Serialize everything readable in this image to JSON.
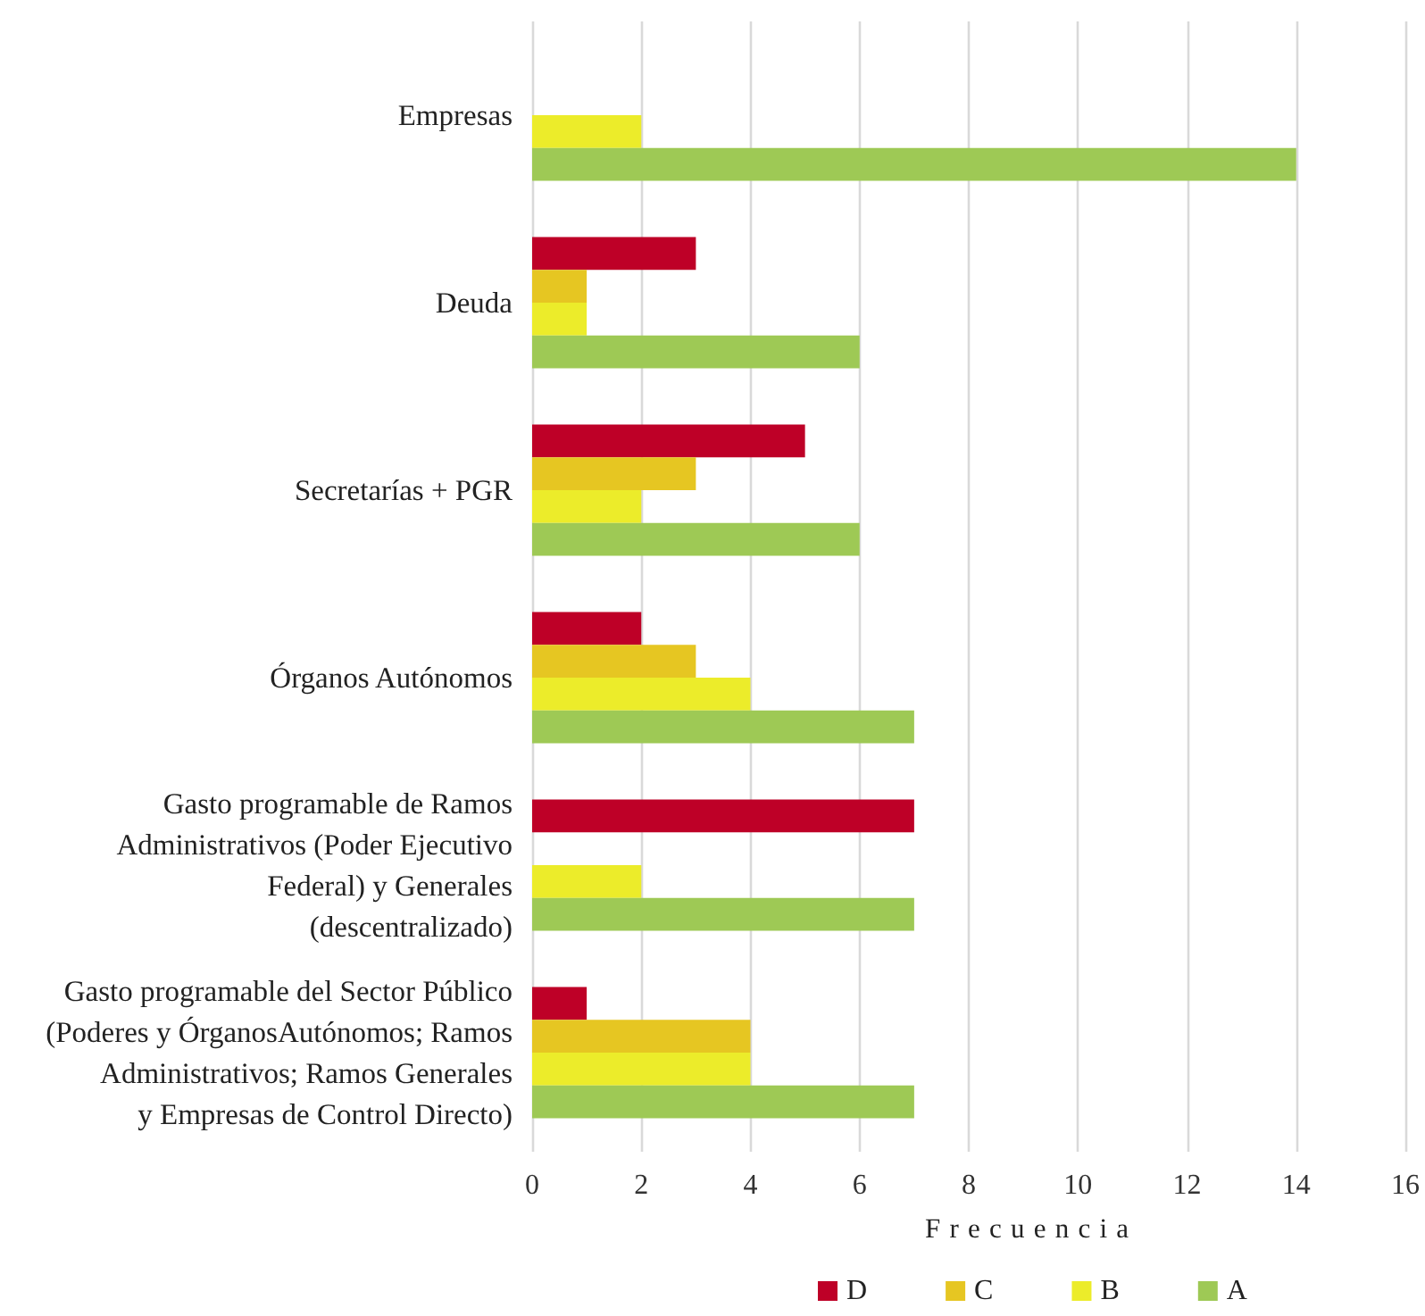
{
  "chart_data": {
    "type": "bar",
    "orientation": "horizontal",
    "xlabel": "Frecuencia",
    "categories": [
      "Empresas",
      "Deuda",
      "Secretarías + PGR",
      "Órganos Autónomos",
      "Gasto programable de Ramos\nAdministrativos (Poder Ejecutivo\nFederal) y Generales\n(descentralizado)",
      "Gasto programable del Sector Público\n(Poderes y ÓrganosAutónomos; Ramos\nAdministrativos; Ramos Generales\ny Empresas de Control Directo)"
    ],
    "series": [
      {
        "name": "D",
        "color": "#be0027",
        "values": [
          null,
          3,
          5,
          2,
          7,
          1
        ]
      },
      {
        "name": "C",
        "color": "#e6c622",
        "values": [
          null,
          1,
          3,
          3,
          null,
          4
        ]
      },
      {
        "name": "B",
        "color": "#ecec2a",
        "values": [
          2,
          1,
          2,
          4,
          2,
          4
        ]
      },
      {
        "name": "A",
        "color": "#9ec955",
        "values": [
          14,
          6,
          6,
          7,
          7,
          7
        ]
      }
    ],
    "xlim": [
      0,
      16
    ],
    "xticks": [
      0,
      2,
      4,
      6,
      8,
      10,
      12,
      14,
      16
    ],
    "grid": "x",
    "legend": "bottom"
  }
}
